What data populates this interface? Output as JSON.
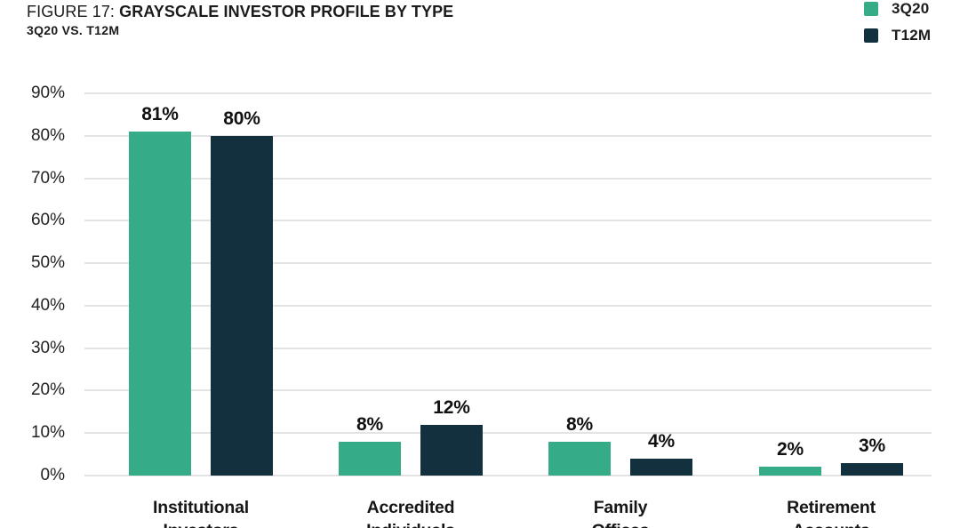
{
  "header": {
    "figure_prefix": "FIGURE 17: ",
    "title": "GRAYSCALE INVESTOR PROFILE BY TYPE",
    "subtitle": "3Q20 VS. T12M"
  },
  "legend": {
    "items": [
      {
        "label": "3Q20",
        "color": "#35AC87"
      },
      {
        "label": "T12M",
        "color": "#13303F"
      }
    ]
  },
  "chart_data": {
    "type": "bar",
    "title": "FIGURE 17: GRAYSCALE INVESTOR PROFILE BY TYPE",
    "subtitle": "3Q20 VS. T12M",
    "categories": [
      {
        "label": "Institutional",
        "sublabel": "Investors"
      },
      {
        "label": "Accredited",
        "sublabel": "Individuals"
      },
      {
        "label": "Family",
        "sublabel": "Offices"
      },
      {
        "label": "Retirement",
        "sublabel": "Accounts"
      }
    ],
    "series": [
      {
        "name": "3Q20",
        "color": "#35AC87",
        "values": [
          81,
          8,
          8,
          2
        ],
        "labels": [
          "81%",
          "8%",
          "8%",
          "2%"
        ]
      },
      {
        "name": "T12M",
        "color": "#13303F",
        "values": [
          80,
          12,
          4,
          3
        ],
        "labels": [
          "80%",
          "12%",
          "4%",
          "3%"
        ]
      }
    ],
    "y_ticks": [
      {
        "value": 90,
        "label": "90%"
      },
      {
        "value": 80,
        "label": "80%"
      },
      {
        "value": 70,
        "label": "70%"
      },
      {
        "value": 60,
        "label": "60%"
      },
      {
        "value": 50,
        "label": "50%"
      },
      {
        "value": 40,
        "label": "40%"
      },
      {
        "value": 30,
        "label": "30%"
      },
      {
        "value": 20,
        "label": "20%"
      },
      {
        "value": 10,
        "label": "10%"
      },
      {
        "value": 0,
        "label": "0%"
      }
    ],
    "ylim": [
      0,
      90
    ],
    "grid": true,
    "legend_position": "top-right",
    "value_label_format": "percent",
    "colors": {
      "grid": "#e3e3e3",
      "text": "#1c1c1c"
    }
  }
}
